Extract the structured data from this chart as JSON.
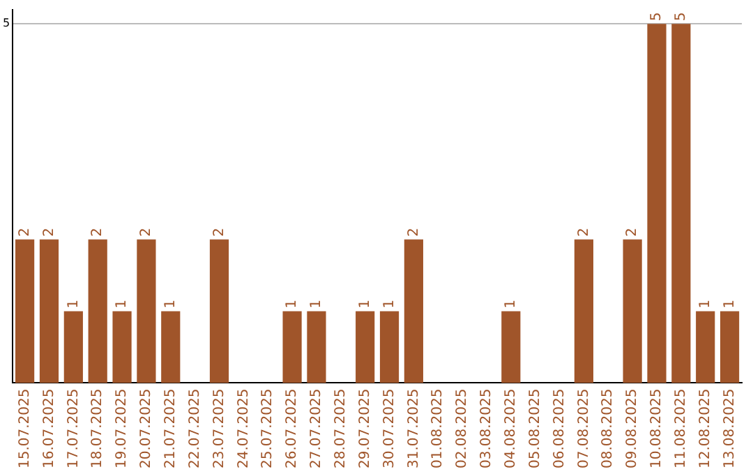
{
  "chart_data": {
    "type": "bar",
    "categories": [
      "15.07.2025",
      "16.07.2025",
      "17.07.2025",
      "18.07.2025",
      "19.07.2025",
      "20.07.2025",
      "21.07.2025",
      "22.07.2025",
      "23.07.2025",
      "24.07.2025",
      "25.07.2025",
      "26.07.2025",
      "27.07.2025",
      "28.07.2025",
      "29.07.2025",
      "30.07.2025",
      "31.07.2025",
      "01.08.2025",
      "02.08.2025",
      "03.08.2025",
      "04.08.2025",
      "05.08.2025",
      "06.08.2025",
      "07.08.2025",
      "08.08.2025",
      "09.08.2025",
      "10.08.2025",
      "11.08.2025",
      "12.08.2025",
      "13.08.2025"
    ],
    "values": [
      2,
      2,
      1,
      2,
      1,
      2,
      1,
      null,
      2,
      null,
      null,
      1,
      1,
      null,
      1,
      1,
      2,
      null,
      null,
      null,
      1,
      null,
      null,
      2,
      null,
      2,
      5,
      5,
      1,
      1
    ],
    "color": "#a0552a",
    "ylim": [
      0,
      5.2
    ],
    "yticks": [
      5
    ],
    "grid": "y",
    "data_labels": true
  }
}
